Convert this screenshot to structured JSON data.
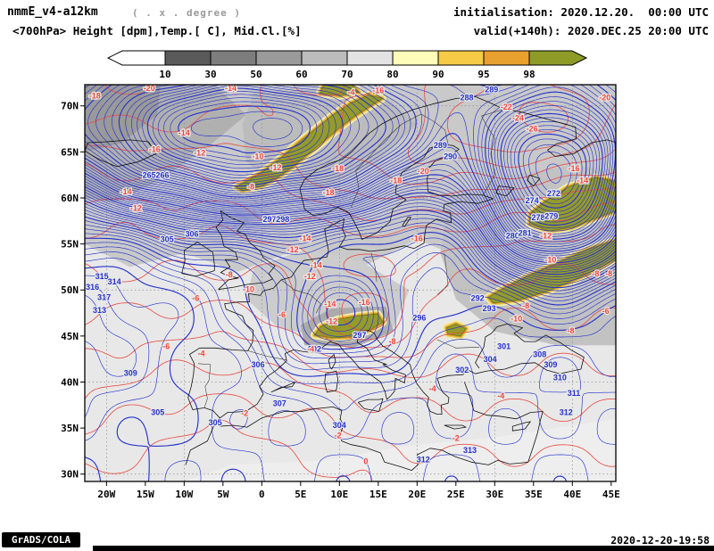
{
  "header": {
    "model": "nmmE_v4-a12km",
    "grid_note": "( . x . degree )",
    "init": "initialisation: 2020.12.20.  00:00 UTC",
    "field_title": "<700hPa> Height [dpm],Temp.[ C], Mid.Cl.[%]",
    "valid": "valid(+140h): 2020.DEC.25 20:00 UTC"
  },
  "colorbar": {
    "tick_labels": [
      "10",
      "30",
      "50",
      "60",
      "70",
      "80",
      "90",
      "95",
      "98"
    ],
    "segment_colors": [
      "#ffffff",
      "#5a5a5a",
      "#7d7d7d",
      "#9a9a9a",
      "#bcbcbc",
      "#e3e3e3",
      "#fdfdb9",
      "#f6ca45",
      "#e8a02e",
      "#8e9b26"
    ],
    "outline_color": "#000000"
  },
  "axes": {
    "lat_ticks": [
      {
        "label": "70N",
        "lat": 70
      },
      {
        "label": "65N",
        "lat": 65
      },
      {
        "label": "60N",
        "lat": 60
      },
      {
        "label": "55N",
        "lat": 55
      },
      {
        "label": "50N",
        "lat": 50
      },
      {
        "label": "45N",
        "lat": 45
      },
      {
        "label": "40N",
        "lat": 40
      },
      {
        "label": "35N",
        "lat": 35
      },
      {
        "label": "30N",
        "lat": 30
      }
    ],
    "lon_ticks": [
      {
        "label": "20W",
        "lon": -20
      },
      {
        "label": "15W",
        "lon": -15
      },
      {
        "label": "10W",
        "lon": -10
      },
      {
        "label": "5W",
        "lon": -5
      },
      {
        "label": "0",
        "lon": 0
      },
      {
        "label": "5E",
        "lon": 5
      },
      {
        "label": "10E",
        "lon": 10
      },
      {
        "label": "15E",
        "lon": 15
      },
      {
        "label": "20E",
        "lon": 20
      },
      {
        "label": "25E",
        "lon": 25
      },
      {
        "label": "30E",
        "lon": 30
      },
      {
        "label": "35E",
        "lon": 35
      },
      {
        "label": "40E",
        "lon": 40
      },
      {
        "label": "45E",
        "lon": 45
      }
    ]
  },
  "footer": {
    "brand": "GrADS/COLA",
    "timestamp": "2020-12-20-19:58"
  },
  "chart_data": {
    "type": "heatmap",
    "subtype": "meteorological_contour_map",
    "title": "<700hPa> Height [dpm],Temp.[ C], Mid.Cl.[%]",
    "region": {
      "lon_min": -22.8,
      "lon_max": 45.6,
      "lat_min": 29.2,
      "lat_max": 72.3
    },
    "shading": {
      "variable": "Mid.Cl.[%]",
      "thresholds": [
        10,
        30,
        50,
        60,
        70,
        80,
        90,
        95,
        98
      ],
      "palette": [
        "#ffffff",
        "#5a5a5a",
        "#7d7d7d",
        "#9a9a9a",
        "#bcbcbc",
        "#e3e3e3",
        "#fdfdb9",
        "#f6ca45",
        "#e8a02e",
        "#8e9b26"
      ],
      "high_cloud_regions": [
        "Norwegian coastal band (2W-15E, 61-71N)",
        "NW Russia (34-46E, 56-62N)",
        "SW Russia / Ukraine band (30-46E, 48-55N)",
        "Alpine region (7-16E, 45-47.5N)",
        "small patch near E Carpathians (24-26E, 45-46N)"
      ]
    },
    "height_contours": {
      "variable": "700hPa geopotential height",
      "units": "dpm",
      "interval": 1,
      "min": 263,
      "max": 318,
      "line_color": "#2633cc",
      "label_format": "[value_dpm, lon, lat]",
      "labels": [
        [
          265,
          -14.5,
          62.2
        ],
        [
          266,
          -12.8,
          62.2
        ],
        [
          297,
          1.0,
          57.4
        ],
        [
          298,
          2.7,
          57.4
        ],
        [
          306,
          -9.0,
          55.8
        ],
        [
          305,
          -12.2,
          55.2
        ],
        [
          315,
          -20.6,
          51.2
        ],
        [
          314,
          -19.0,
          50.6
        ],
        [
          316,
          -21.8,
          50.0
        ],
        [
          317,
          -20.3,
          48.9
        ],
        [
          313,
          -20.9,
          47.5
        ],
        [
          309,
          -16.9,
          40.7
        ],
        [
          305,
          -13.4,
          36.4
        ],
        [
          306,
          -0.5,
          41.6
        ],
        [
          307,
          2.3,
          37.4
        ],
        [
          305,
          -6.0,
          35.3
        ],
        [
          302,
          6.8,
          43.3
        ],
        [
          289,
          29.6,
          71.5
        ],
        [
          288,
          26.4,
          70.6
        ],
        [
          289,
          23.0,
          65.4
        ],
        [
          290,
          24.3,
          64.2
        ],
        [
          280,
          32.3,
          55.6
        ],
        [
          281,
          33.9,
          55.9
        ],
        [
          278,
          35.6,
          57.6
        ],
        [
          279,
          37.3,
          57.7
        ],
        [
          272,
          37.6,
          60.2
        ],
        [
          274,
          34.8,
          59.4
        ],
        [
          292,
          27.8,
          48.8
        ],
        [
          293,
          29.3,
          47.7
        ],
        [
          296,
          20.3,
          46.7
        ],
        [
          297,
          12.6,
          44.8
        ],
        [
          301,
          31.2,
          43.6
        ],
        [
          302,
          25.8,
          41.0
        ],
        [
          304,
          29.4,
          42.2
        ],
        [
          308,
          35.8,
          42.7
        ],
        [
          309,
          37.2,
          41.6
        ],
        [
          310,
          38.4,
          40.2
        ],
        [
          311,
          40.2,
          38.5
        ],
        [
          312,
          39.2,
          36.4
        ],
        [
          313,
          26.8,
          32.3
        ],
        [
          312,
          20.8,
          31.3
        ],
        [
          304,
          10.0,
          35.0
        ]
      ]
    },
    "temp_contours": {
      "variable": "700hPa temperature",
      "units": "C",
      "interval": 2,
      "min": -26,
      "max": 0,
      "line_color": "#e85048",
      "line_style": "dashed",
      "label_format": "[value_C, lon, lat]",
      "labels": [
        [
          -18,
          -21.5,
          70.8
        ],
        [
          -20,
          -14.5,
          71.6
        ],
        [
          -14,
          -4.0,
          71.6
        ],
        [
          -16,
          -13.8,
          65.0
        ],
        [
          -14,
          -10.0,
          66.8
        ],
        [
          -12,
          -8.0,
          64.6
        ],
        [
          -14,
          -17.5,
          60.4
        ],
        [
          -12,
          -16.2,
          58.6
        ],
        [
          -10,
          -0.5,
          64.2
        ],
        [
          -12,
          1.8,
          63.0
        ],
        [
          -8,
          -1.4,
          60.9
        ],
        [
          -18,
          9.8,
          62.9
        ],
        [
          -18,
          8.6,
          60.3
        ],
        [
          -16,
          15.0,
          71.4
        ],
        [
          -4,
          11.5,
          71.2
        ],
        [
          -22,
          31.5,
          69.6
        ],
        [
          -24,
          33.0,
          68.4
        ],
        [
          -26,
          34.8,
          67.2
        ],
        [
          -20,
          44.2,
          70.6
        ],
        [
          -16,
          40.2,
          62.9
        ],
        [
          -14,
          41.3,
          61.6
        ],
        [
          -20,
          20.8,
          62.6
        ],
        [
          -18,
          17.3,
          61.6
        ],
        [
          -16,
          20.0,
          55.3
        ],
        [
          -12,
          36.6,
          55.6
        ],
        [
          -10,
          37.2,
          53.0
        ],
        [
          -8,
          43.0,
          51.5
        ],
        [
          -8,
          44.7,
          51.5
        ],
        [
          -6,
          44.3,
          47.4
        ],
        [
          -8,
          34.0,
          48.0
        ],
        [
          -10,
          32.8,
          46.6
        ],
        [
          -8,
          39.8,
          45.3
        ],
        [
          -14,
          5.6,
          55.3
        ],
        [
          -12,
          4.0,
          54.1
        ],
        [
          -8,
          -4.2,
          51.4
        ],
        [
          -10,
          -1.7,
          49.8
        ],
        [
          -6,
          -8.5,
          48.8
        ],
        [
          -6,
          -12.3,
          43.6
        ],
        [
          -4,
          -7.8,
          42.8
        ],
        [
          -6,
          2.6,
          47.0
        ],
        [
          -14,
          7.0,
          52.4
        ],
        [
          -12,
          6.2,
          51.2
        ],
        [
          -16,
          13.2,
          48.4
        ],
        [
          -14,
          8.8,
          48.2
        ],
        [
          -12,
          9.0,
          46.3
        ],
        [
          -8,
          16.8,
          44.1
        ],
        [
          -2,
          -2.2,
          36.3
        ],
        [
          -2,
          9.8,
          33.9
        ],
        [
          0,
          13.4,
          31.1
        ],
        [
          -2,
          25.0,
          33.6
        ],
        [
          -4,
          6.3,
          43.3
        ],
        [
          -4,
          22.0,
          39.0
        ],
        [
          -4,
          30.8,
          38.2
        ]
      ]
    }
  }
}
